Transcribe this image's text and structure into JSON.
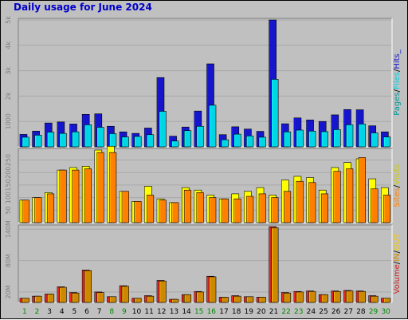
{
  "title": "Daily usage for June 2024",
  "colors": {
    "background": "#c0c0c0",
    "hits": "#1515cc",
    "files": "#00d5e6",
    "pages": "#009999",
    "visits": "#ffff00",
    "sites": "#ff8000",
    "volume": "#cc2222",
    "in": "#cc8800",
    "out": "#ffcc00",
    "weekday": "#000000",
    "weekend": "#008800"
  },
  "chart_data": {
    "type": "bar",
    "days": [
      "1",
      "2",
      "3",
      "4",
      "5",
      "6",
      "7",
      "8",
      "9",
      "10",
      "11",
      "12",
      "13",
      "14",
      "15",
      "16",
      "17",
      "18",
      "19",
      "20",
      "21",
      "22",
      "23",
      "24",
      "25",
      "26",
      "27",
      "28",
      "29",
      "30"
    ],
    "weekend_days": [
      "1",
      "2",
      "8",
      "9",
      "15",
      "16",
      "22",
      "23",
      "29",
      "30"
    ],
    "panels": [
      {
        "id": "hits",
        "y_ticks": [
          "1000",
          "2k",
          "3k",
          "4k",
          "5k"
        ],
        "y_tick_values": [
          1000,
          2000,
          3000,
          4000,
          5000
        ],
        "ymax": 5000,
        "legend": [
          {
            "label": "Pages",
            "color": "#009999"
          },
          {
            "label": "/",
            "color": "#000000"
          },
          {
            "label": "Files",
            "color": "#00d5e6"
          },
          {
            "label": "/",
            "color": "#000000"
          },
          {
            "label": "Hits_",
            "color": "#1515cc"
          }
        ],
        "series": [
          {
            "name": "Hits",
            "color": "#1515cc",
            "values": [
              490,
              620,
              940,
              980,
              900,
              1280,
              1300,
              810,
              590,
              530,
              740,
              2730,
              420,
              780,
              1410,
              3270,
              480,
              790,
              700,
              610,
              5000,
              910,
              1140,
              1060,
              1000,
              1260,
              1470,
              1460,
              830,
              590
            ]
          },
          {
            "name": "Files",
            "color": "#00d5e6",
            "values": [
              380,
              460,
              580,
              530,
              590,
              870,
              770,
              520,
              390,
              410,
              480,
              1400,
              230,
              640,
              810,
              1640,
              280,
              500,
              430,
              380,
              2660,
              590,
              660,
              620,
              600,
              680,
              870,
              900,
              550,
              390
            ]
          }
        ]
      },
      {
        "id": "visits",
        "y_ticks": [
          "50",
          "100",
          "150",
          "200",
          "250"
        ],
        "y_tick_values": [
          50,
          100,
          150,
          200,
          250
        ],
        "ymax": 290,
        "legend": [
          {
            "label": "Sites",
            "color": "#ff8000"
          },
          {
            "label": "/",
            "color": "#000000"
          },
          {
            "label": "Visits",
            "color": "#cccc00"
          }
        ],
        "series": [
          {
            "name": "Visits",
            "color": "#ffff00",
            "values": [
              90,
              100,
              120,
              210,
              220,
              225,
              290,
              305,
              125,
              85,
              145,
              95,
              80,
              140,
              130,
              110,
              95,
              115,
              125,
              140,
              110,
              170,
              185,
              180,
              130,
              220,
              240,
              255,
              175,
              140
            ]
          },
          {
            "name": "Sites",
            "color": "#ff8000",
            "values": [
              90,
              100,
              115,
              210,
              210,
              215,
              280,
              280,
              125,
              85,
              110,
              90,
              80,
              130,
              120,
              100,
              95,
              95,
              105,
              115,
              100,
              125,
              165,
              160,
              115,
              205,
              215,
              260,
              135,
              110
            ]
          }
        ]
      },
      {
        "id": "volume",
        "y_ticks": [
          "20M",
          "80M",
          "140M"
        ],
        "y_tick_values": [
          20,
          80,
          140
        ],
        "ymax": 145,
        "legend": [
          {
            "label": "Volume",
            "color": "#cc2222"
          },
          {
            "label": "/",
            "color": "#000000"
          },
          {
            "label": "IN",
            "color": "#cc8800"
          },
          {
            "label": "/",
            "color": "#000000"
          },
          {
            "label": "OUT",
            "color": "#ffcc00"
          }
        ],
        "series": [
          {
            "name": "Volume",
            "color": "#cc2222",
            "values": [
              8,
              12,
              16,
              30,
              19,
              62,
              20,
              11,
              32,
              8,
              13,
              42,
              6,
              15,
              21,
              50,
              10,
              13,
              11,
              10,
              145,
              19,
              21,
              22,
              15,
              22,
              23,
              22,
              13,
              8
            ]
          },
          {
            "name": "IN",
            "color": "#cc8800",
            "values": [
              8,
              12,
              16,
              29,
              18,
              61,
              19,
              11,
              31,
              8,
              12,
              41,
              6,
              15,
              20,
              49,
              10,
              12,
              11,
              10,
              143,
              18,
              20,
              21,
              15,
              21,
              22,
              21,
              12,
              8
            ]
          }
        ]
      }
    ]
  }
}
